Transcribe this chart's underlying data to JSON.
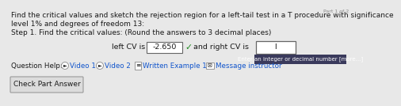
{
  "bg_color": "#e8e8e8",
  "line1": "Find the critical values and sketch the rejection region for a left-tail test in a T procedure with significance",
  "line2": "level 1% and degrees of freedom 13:",
  "line3": "Step 1. Find the critical values: (Round the answers to 3 decimal places)",
  "label_left": "left CV is",
  "value_left": "-2.650",
  "label_right": "and right CV is",
  "input_cursor": "I",
  "tooltip_text": "Enter an integer or decimal number [more...]",
  "help_text": "Question Help:",
  "video1_icon": "►",
  "video1_label": "Video 1",
  "video2_icon": "►",
  "video2_label": "Video 2",
  "written_icon": "≡",
  "written_label": "Written Example 1",
  "message_icon": "✉",
  "message_label": "Message instructor",
  "button_text": "Check Part Answer",
  "check_color": "#228B22",
  "text_color": "#1a1a1a",
  "link_color": "#1155cc",
  "icon_bg": "#ffffff",
  "icon_border": "#888888",
  "box_fill": "#ffffff",
  "box_border": "#666666",
  "tooltip_bg": "#3a3a5c",
  "tooltip_fg": "#ffffff",
  "button_bg": "#dcdcdc",
  "button_border": "#999999",
  "page_label": "Part 1 of 2",
  "font_size_main": 6.5,
  "font_size_cv": 6.8,
  "font_size_help": 6.3,
  "font_size_button": 6.5,
  "font_size_tooltip": 5.0
}
